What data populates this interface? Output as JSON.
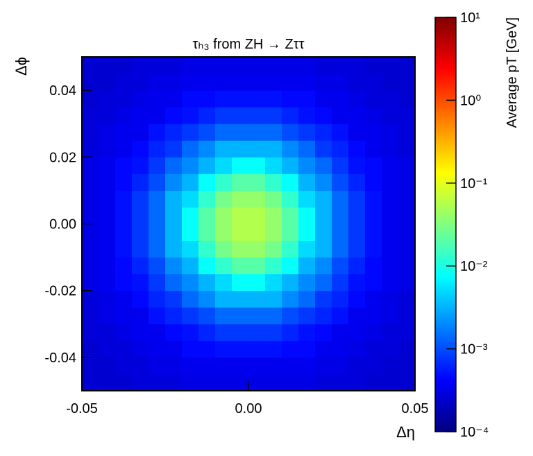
{
  "chart_data": {
    "type": "heatmap",
    "title": "τₕ₃ from ZH → Zττ",
    "x_label": "Δη",
    "y_label": "Δϕ",
    "colorbar_label": "Average pT [GeV]",
    "xlim": [
      -0.05,
      0.05
    ],
    "ylim": [
      -0.05,
      0.05
    ],
    "xticks": [
      -0.05,
      {
        "value": 0,
        "label": "0.00"
      },
      0.05
    ],
    "yticks": [
      -0.04,
      -0.02,
      {
        "value": 0,
        "label": "0.00"
      },
      0.02,
      0.04
    ],
    "zlim": [
      0.0001,
      10
    ],
    "zscale": "log",
    "colormap": "jet",
    "zticks": [
      {
        "value": 0.0001,
        "label": "10⁻⁴"
      },
      {
        "value": 0.001,
        "label": "10⁻³"
      },
      {
        "value": 0.01,
        "label": "10⁻²"
      },
      {
        "value": 0.1,
        "label": "10⁻¹"
      },
      {
        "value": 1,
        "label": "10⁰"
      },
      {
        "value": 10,
        "label": "10¹"
      }
    ],
    "z": [
      [
        0.00025,
        0.00025,
        0.00025,
        0.00028,
        0.00028,
        0.00028,
        0.00032,
        0.00032,
        0.00032,
        0.00032,
        0.00032,
        0.00032,
        0.00032,
        0.00032,
        0.00028,
        0.00028,
        0.00028,
        0.00025,
        0.00025,
        0.00025
      ],
      [
        0.00025,
        0.00025,
        0.00028,
        0.00028,
        0.00032,
        0.00032,
        0.00035,
        0.00035,
        0.00035,
        0.00035,
        0.00035,
        0.00035,
        0.00035,
        0.00035,
        0.00032,
        0.00032,
        0.00028,
        0.00028,
        0.00025,
        0.00025
      ],
      [
        0.00025,
        0.00028,
        0.00028,
        0.00032,
        0.00035,
        0.00035,
        0.00045,
        0.00045,
        0.0005,
        0.0005,
        0.0005,
        0.0005,
        0.00045,
        0.00045,
        0.00035,
        0.00035,
        0.00032,
        0.00028,
        0.00028,
        0.00025
      ],
      [
        0.00028,
        0.00028,
        0.00032,
        0.00035,
        0.00035,
        0.00045,
        0.0005,
        0.00063,
        0.00079,
        0.00079,
        0.00079,
        0.00079,
        0.00063,
        0.0005,
        0.00045,
        0.00035,
        0.00035,
        0.00032,
        0.00028,
        0.00028
      ],
      [
        0.00028,
        0.00032,
        0.00035,
        0.00035,
        0.0005,
        0.00063,
        0.00079,
        0.001,
        0.0014,
        0.0014,
        0.0014,
        0.0014,
        0.001,
        0.00079,
        0.00063,
        0.0005,
        0.00035,
        0.00035,
        0.00032,
        0.00028
      ],
      [
        0.00028,
        0.00032,
        0.00035,
        0.00045,
        0.00063,
        0.00079,
        0.0014,
        0.002,
        0.0032,
        0.0032,
        0.0032,
        0.0032,
        0.002,
        0.0014,
        0.00079,
        0.00063,
        0.00045,
        0.00035,
        0.00032,
        0.00028
      ],
      [
        0.00032,
        0.00035,
        0.00045,
        0.0005,
        0.00079,
        0.0014,
        0.002,
        0.0032,
        0.005,
        0.0079,
        0.0079,
        0.005,
        0.0032,
        0.002,
        0.0014,
        0.00079,
        0.0005,
        0.00045,
        0.00035,
        0.00032
      ],
      [
        0.00032,
        0.00035,
        0.00045,
        0.00063,
        0.001,
        0.002,
        0.0032,
        0.0079,
        0.013,
        0.02,
        0.02,
        0.013,
        0.0079,
        0.0032,
        0.002,
        0.001,
        0.00063,
        0.00045,
        0.00035,
        0.00032
      ],
      [
        0.00032,
        0.00035,
        0.0005,
        0.00079,
        0.0014,
        0.0032,
        0.005,
        0.013,
        0.028,
        0.04,
        0.04,
        0.028,
        0.013,
        0.005,
        0.0032,
        0.0014,
        0.00079,
        0.0005,
        0.00035,
        0.00032
      ],
      [
        0.00032,
        0.00035,
        0.0005,
        0.00079,
        0.0014,
        0.0032,
        0.0079,
        0.02,
        0.04,
        0.056,
        0.056,
        0.04,
        0.02,
        0.0079,
        0.0032,
        0.0014,
        0.00079,
        0.0005,
        0.00035,
        0.00032
      ],
      [
        0.00032,
        0.00035,
        0.0005,
        0.00079,
        0.0014,
        0.0032,
        0.0079,
        0.02,
        0.04,
        0.056,
        0.056,
        0.04,
        0.02,
        0.0079,
        0.0032,
        0.0014,
        0.00079,
        0.0005,
        0.00035,
        0.00032
      ],
      [
        0.00032,
        0.00035,
        0.0005,
        0.00079,
        0.0014,
        0.0032,
        0.005,
        0.013,
        0.028,
        0.04,
        0.04,
        0.028,
        0.013,
        0.005,
        0.0032,
        0.0014,
        0.00079,
        0.0005,
        0.00035,
        0.00032
      ],
      [
        0.00032,
        0.00035,
        0.00045,
        0.00063,
        0.001,
        0.002,
        0.0032,
        0.0079,
        0.013,
        0.02,
        0.02,
        0.013,
        0.0079,
        0.0032,
        0.002,
        0.001,
        0.00063,
        0.00045,
        0.00035,
        0.00032
      ],
      [
        0.00032,
        0.00035,
        0.00045,
        0.0005,
        0.00079,
        0.0014,
        0.002,
        0.0032,
        0.005,
        0.0079,
        0.0079,
        0.005,
        0.0032,
        0.002,
        0.0014,
        0.00079,
        0.0005,
        0.00045,
        0.00035,
        0.00032
      ],
      [
        0.00028,
        0.00032,
        0.00035,
        0.00045,
        0.00063,
        0.00079,
        0.0014,
        0.002,
        0.0032,
        0.0032,
        0.0032,
        0.0032,
        0.002,
        0.0014,
        0.00079,
        0.00063,
        0.00045,
        0.00035,
        0.00032,
        0.00028
      ],
      [
        0.00028,
        0.00032,
        0.00035,
        0.00035,
        0.0005,
        0.00063,
        0.00079,
        0.001,
        0.0014,
        0.0014,
        0.0014,
        0.0014,
        0.001,
        0.00079,
        0.00063,
        0.0005,
        0.00035,
        0.00035,
        0.00032,
        0.00028
      ],
      [
        0.00028,
        0.00028,
        0.00032,
        0.00035,
        0.00035,
        0.00045,
        0.0005,
        0.00063,
        0.00079,
        0.00079,
        0.00079,
        0.00079,
        0.00063,
        0.0005,
        0.00045,
        0.00035,
        0.00035,
        0.00032,
        0.00028,
        0.00028
      ],
      [
        0.00025,
        0.00028,
        0.00028,
        0.00032,
        0.00035,
        0.00035,
        0.00045,
        0.00045,
        0.0005,
        0.0005,
        0.0005,
        0.0005,
        0.00045,
        0.00045,
        0.00035,
        0.00035,
        0.00032,
        0.00028,
        0.00028,
        0.00025
      ],
      [
        0.00025,
        0.00025,
        0.00028,
        0.00028,
        0.00032,
        0.00032,
        0.00035,
        0.00035,
        0.00035,
        0.00035,
        0.00035,
        0.00035,
        0.00035,
        0.00035,
        0.00032,
        0.00032,
        0.00028,
        0.00028,
        0.00025,
        0.00025
      ],
      [
        0.00025,
        0.00025,
        0.00025,
        0.00028,
        0.00028,
        0.00028,
        0.00032,
        0.00032,
        0.00032,
        0.00032,
        0.00032,
        0.00032,
        0.00032,
        0.00032,
        0.00028,
        0.00028,
        0.00028,
        0.00025,
        0.00025,
        0.00025
      ]
    ]
  }
}
